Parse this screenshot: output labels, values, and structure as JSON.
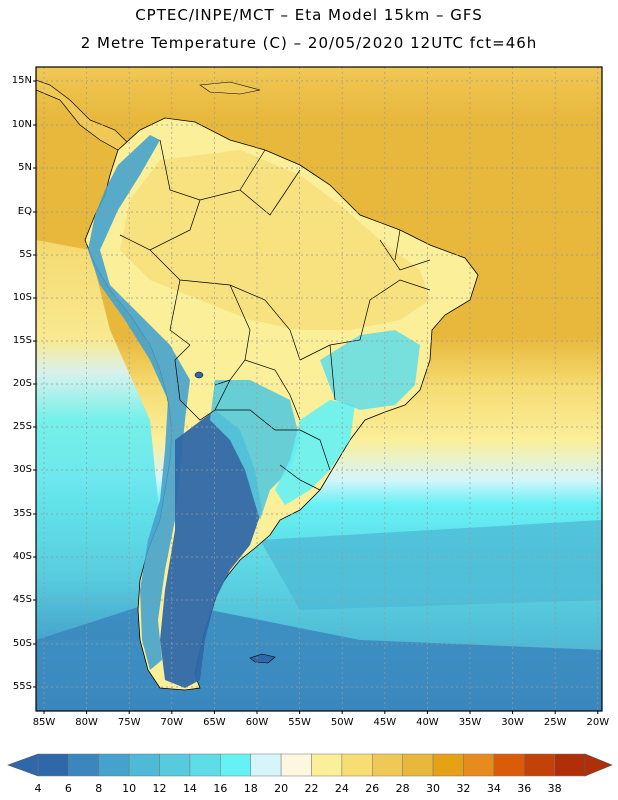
{
  "header": {
    "line1": "CPTEC/INPE/MCT –  Eta Model 15km – GFS",
    "line2": "2 Metre Temperature (C) – 20/05/2020 12UTC fct=46h"
  },
  "map": {
    "lat_labels": [
      "15N",
      "10N",
      "5N",
      "EQ",
      "5S",
      "10S",
      "15S",
      "20S",
      "25S",
      "30S",
      "35S",
      "40S",
      "45S",
      "50S",
      "55S"
    ],
    "lon_labels": [
      "85W",
      "80W",
      "75W",
      "70W",
      "65W",
      "60W",
      "55W",
      "50W",
      "45W",
      "40W",
      "35W",
      "30W",
      "25W",
      "20W"
    ]
  },
  "colorbar": {
    "labels": [
      "4",
      "6",
      "8",
      "10",
      "12",
      "14",
      "16",
      "18",
      "20",
      "22",
      "24",
      "26",
      "28",
      "30",
      "32",
      "34",
      "36",
      "38"
    ],
    "colors": [
      "#2f68a8",
      "#3a86bd",
      "#45a2cd",
      "#4ebad6",
      "#57cadd",
      "#5fdde7",
      "#66f1f4",
      "#d6f5fb",
      "#fdf6e1",
      "#fbef9a",
      "#f6dd74",
      "#f0c855",
      "#e8b83d",
      "#e6a216",
      "#e88b1e",
      "#db5c08",
      "#c34208",
      "#b02e08"
    ]
  },
  "colors": {
    "deep_cold": "#2f68a8",
    "ocean_south": "#45a2cd",
    "ocean_mid": "#57cadd",
    "ocean_warm": "#f6dd74",
    "tropical": "#e8b83d"
  }
}
